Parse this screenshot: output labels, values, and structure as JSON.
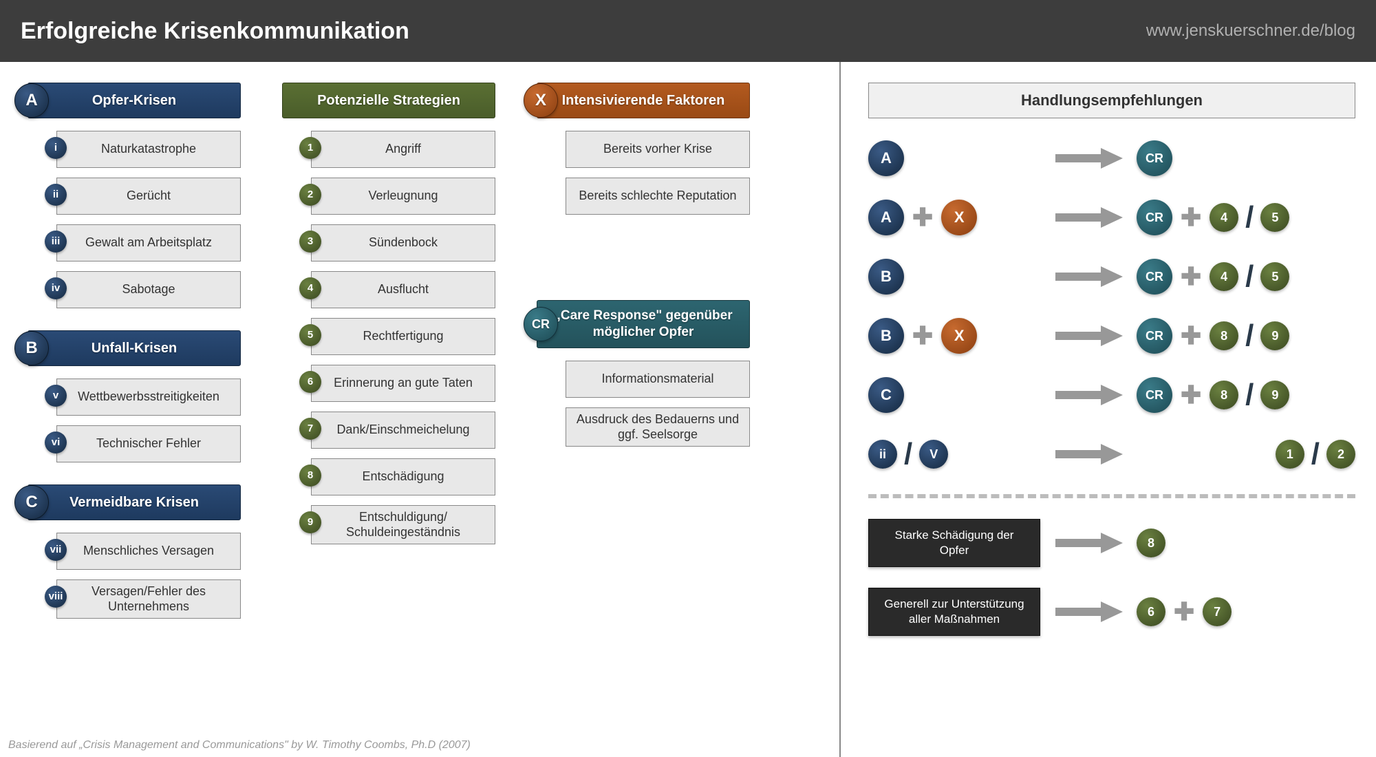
{
  "header": {
    "title": "Erfolgreiche Krisenkommunikation",
    "url": "www.jenskuerschner.de/blog"
  },
  "colors": {
    "blue": "#1e3a5f",
    "green": "#4a5d2a",
    "orange": "#9a4a15",
    "teal": "#23525b",
    "item_bg": "#e8e8e8",
    "arrow": "#989898"
  },
  "crisis_groups": [
    {
      "badge": "A",
      "title": "Opfer-Krisen",
      "items": [
        {
          "n": "i",
          "label": "Naturkatastrophe"
        },
        {
          "n": "ii",
          "label": "Gerücht"
        },
        {
          "n": "iii",
          "label": "Gewalt am Arbeitsplatz"
        },
        {
          "n": "iv",
          "label": "Sabotage"
        }
      ]
    },
    {
      "badge": "B",
      "title": "Unfall-Krisen",
      "items": [
        {
          "n": "v",
          "label": "Wettbewerbsstreitigkeiten"
        },
        {
          "n": "vi",
          "label": "Technischer Fehler"
        }
      ]
    },
    {
      "badge": "C",
      "title": "Vermeidbare Krisen",
      "items": [
        {
          "n": "vii",
          "label": "Menschliches Versagen"
        },
        {
          "n": "viii",
          "label": "Versagen/Fehler des Unternehmens"
        }
      ]
    }
  ],
  "strategies": {
    "title": "Potenzielle Strategien",
    "items": [
      {
        "n": "1",
        "label": "Angriff"
      },
      {
        "n": "2",
        "label": "Verleugnung"
      },
      {
        "n": "3",
        "label": "Sündenbock"
      },
      {
        "n": "4",
        "label": "Ausflucht"
      },
      {
        "n": "5",
        "label": "Rechtfertigung"
      },
      {
        "n": "6",
        "label": "Erinnerung an gute Taten"
      },
      {
        "n": "7",
        "label": "Dank/Einschmeichelung"
      },
      {
        "n": "8",
        "label": "Entschädigung"
      },
      {
        "n": "9",
        "label": "Entschuldigung/ Schuldeingeständnis"
      }
    ]
  },
  "intensifying": {
    "badge": "X",
    "title": "Intensivierende Faktoren",
    "items": [
      {
        "label": "Bereits vorher Krise"
      },
      {
        "label": "Bereits schlechte Reputation"
      }
    ]
  },
  "care_response": {
    "badge": "CR",
    "title": "„Care Response\" gegenüber möglicher Opfer",
    "items": [
      {
        "label": "Informationsmaterial"
      },
      {
        "label": "Ausdruck des Bedauerns und ggf. Seelsorge"
      }
    ]
  },
  "recommendations": {
    "title": "Handlungsempfehlungen",
    "rows": [
      {
        "left": [
          {
            "t": "A",
            "c": "blue"
          }
        ],
        "right": [
          {
            "t": "CR",
            "c": "teal"
          }
        ]
      },
      {
        "left": [
          {
            "t": "A",
            "c": "blue"
          },
          {
            "op": "plus"
          },
          {
            "t": "X",
            "c": "orange"
          }
        ],
        "right": [
          {
            "t": "CR",
            "c": "teal"
          },
          {
            "op": "plus"
          },
          {
            "t": "4",
            "c": "green",
            "sm": true
          },
          {
            "op": "slash"
          },
          {
            "t": "5",
            "c": "green",
            "sm": true
          }
        ]
      },
      {
        "left": [
          {
            "t": "B",
            "c": "blue"
          }
        ],
        "right": [
          {
            "t": "CR",
            "c": "teal"
          },
          {
            "op": "plus"
          },
          {
            "t": "4",
            "c": "green",
            "sm": true
          },
          {
            "op": "slash"
          },
          {
            "t": "5",
            "c": "green",
            "sm": true
          }
        ]
      },
      {
        "left": [
          {
            "t": "B",
            "c": "blue"
          },
          {
            "op": "plus"
          },
          {
            "t": "X",
            "c": "orange"
          }
        ],
        "right": [
          {
            "t": "CR",
            "c": "teal"
          },
          {
            "op": "plus"
          },
          {
            "t": "8",
            "c": "green",
            "sm": true
          },
          {
            "op": "slash"
          },
          {
            "t": "9",
            "c": "green",
            "sm": true
          }
        ]
      },
      {
        "left": [
          {
            "t": "C",
            "c": "blue"
          }
        ],
        "right": [
          {
            "t": "CR",
            "c": "teal"
          },
          {
            "op": "plus"
          },
          {
            "t": "8",
            "c": "green",
            "sm": true
          },
          {
            "op": "slash"
          },
          {
            "t": "9",
            "c": "green",
            "sm": true
          }
        ]
      },
      {
        "left": [
          {
            "t": "ii",
            "c": "blue",
            "sm": true
          },
          {
            "op": "slash"
          },
          {
            "t": "V",
            "c": "blue",
            "sm": true
          }
        ],
        "right": [
          {
            "t": "1",
            "c": "green",
            "sm": true
          },
          {
            "op": "slash"
          },
          {
            "t": "2",
            "c": "green",
            "sm": true
          }
        ],
        "right_align_end": true
      }
    ],
    "extras": [
      {
        "box": "Starke Schädigung der Opfer",
        "right": [
          {
            "t": "8",
            "c": "green",
            "sm": true
          }
        ]
      },
      {
        "box": "Generell zur Unterstützung aller Maßnahmen",
        "right": [
          {
            "t": "6",
            "c": "green",
            "sm": true
          },
          {
            "op": "plus"
          },
          {
            "t": "7",
            "c": "green",
            "sm": true
          }
        ]
      }
    ]
  },
  "footer": "Basierend auf „Crisis Management and Communications\" by W. Timothy Coombs, Ph.D (2007)"
}
